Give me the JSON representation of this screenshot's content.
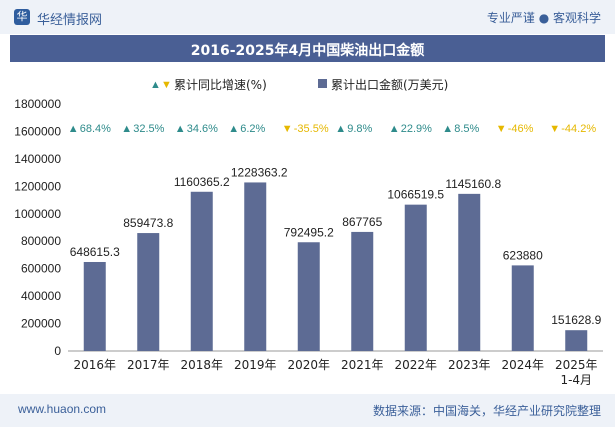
{
  "header": {
    "logo_glyph": "华",
    "brand": "华经情报网",
    "tagline": "专业严谨 ● 客观科学"
  },
  "title": "2016-2025年4月中国柴油出口金额",
  "footer": {
    "website": "www.huaon.com",
    "source": "数据来源：中国海关，华经产业研究院整理"
  },
  "colors": {
    "bar": "#5d6b94",
    "up": "#2e8b8b",
    "down": "#e6b800",
    "titlebar": "#4a5f94"
  },
  "chart_data": {
    "type": "bar",
    "categories": [
      "2016年",
      "2017年",
      "2018年",
      "2019年",
      "2020年",
      "2021年",
      "2022年",
      "2023年",
      "2024年",
      "2025年\n1-4月"
    ],
    "series": [
      {
        "name": "累计出口金额(万美元)",
        "values": [
          648615.3,
          859473.8,
          1160365.2,
          1228363.2,
          792495.2,
          867765,
          1066519.5,
          1145160.8,
          623880,
          151628.9
        ]
      },
      {
        "name": "累计同比增速(%)",
        "values": [
          "68.4%",
          "32.5%",
          "34.6%",
          "6.2%",
          "-35.5%",
          "9.8%",
          "22.9%",
          "8.5%",
          "-46%",
          "-44.2%"
        ]
      }
    ],
    "ylim": [
      0,
      1800000
    ],
    "yticks": [
      0,
      200000,
      400000,
      600000,
      800000,
      1000000,
      1200000,
      1400000,
      1600000,
      1800000
    ],
    "legend": [
      "累计同比增速(%)",
      "累计出口金额(万美元)"
    ],
    "legend_position": "top"
  }
}
